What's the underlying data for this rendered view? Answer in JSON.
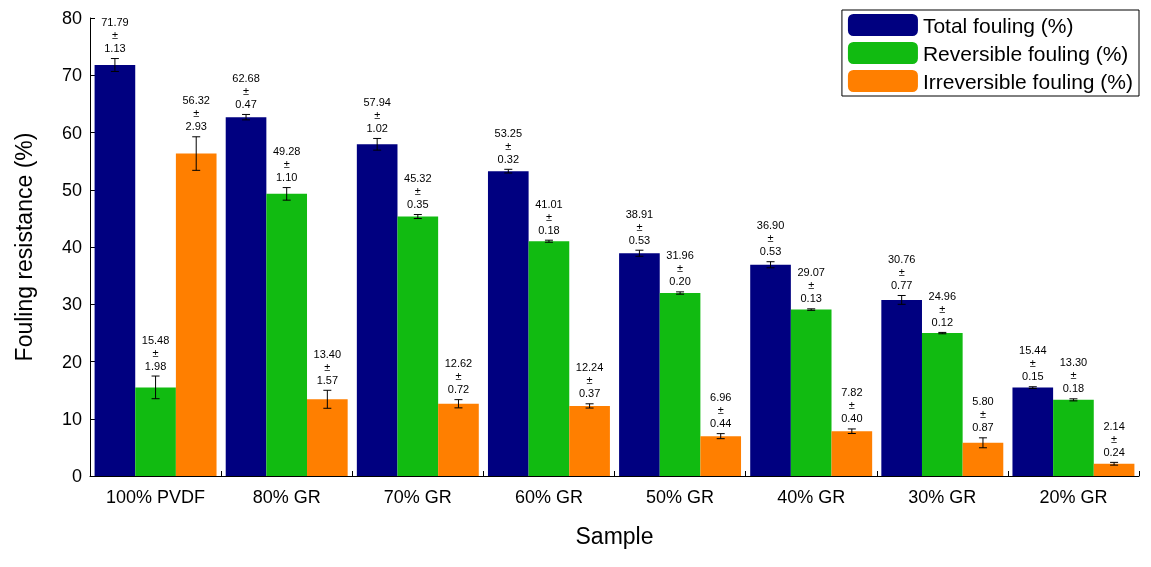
{
  "chart_data": {
    "type": "bar",
    "xlabel": "Sample",
    "ylabel": "Fouling resistance (%)",
    "categories": [
      "100% PVDF",
      "80% GR",
      "70% GR",
      "60% GR",
      "50% GR",
      "40% GR",
      "30% GR",
      "20% GR"
    ],
    "ylim": [
      0,
      80
    ],
    "yticks": [
      0,
      10,
      20,
      30,
      40,
      50,
      60,
      70,
      80
    ],
    "grid": false,
    "legend": "top right",
    "series": [
      {
        "name": "Total fouling (%)",
        "color": "#000080",
        "values": [
          71.79,
          62.68,
          57.94,
          53.25,
          38.91,
          36.9,
          30.76,
          15.44
        ],
        "errors": [
          1.13,
          0.47,
          1.02,
          0.32,
          0.53,
          0.53,
          0.77,
          0.15
        ],
        "value_labels": [
          "71.79 ± 1.13",
          "62.68 ± 0.47",
          "57.94 ± 1.02",
          "53.25 ± 0.32",
          "38.91 ± 0.53",
          "36.90 ± 0.53",
          "30.76 ± 0.77",
          "15.44 ± 0.15"
        ]
      },
      {
        "name": "Reversible fouling (%)",
        "color": "#11bb11",
        "values": [
          15.48,
          49.28,
          45.32,
          41.01,
          31.96,
          29.07,
          24.96,
          13.3
        ],
        "errors": [
          1.98,
          1.1,
          0.35,
          0.18,
          0.2,
          0.13,
          0.12,
          0.18
        ],
        "value_labels": [
          "15.48 ± 1.98",
          "49.28 ± 1.10",
          "45.32 ± 0.35",
          "41.01 ± 0.18",
          "31.96 ± 0.20",
          "29.07 ± 0.13",
          "24.96 ± 0.12",
          "13.30 ± 0.18"
        ]
      },
      {
        "name": "Irreversible fouling (%)",
        "color": "#ff7f00",
        "values": [
          56.32,
          13.4,
          12.62,
          12.24,
          6.96,
          7.82,
          5.8,
          2.14
        ],
        "errors": [
          2.93,
          1.57,
          0.72,
          0.37,
          0.44,
          0.4,
          0.87,
          0.24
        ],
        "value_labels": [
          "56.32 ± 2.93",
          "13.40 ± 1.57",
          "12.62 ± 0.72",
          "12.24 ± 0.37",
          "6.96 ± 0.44",
          "7.82 ± 0.40",
          "5.80 ± 0.87",
          "2.14 ± 0.24"
        ]
      }
    ]
  }
}
